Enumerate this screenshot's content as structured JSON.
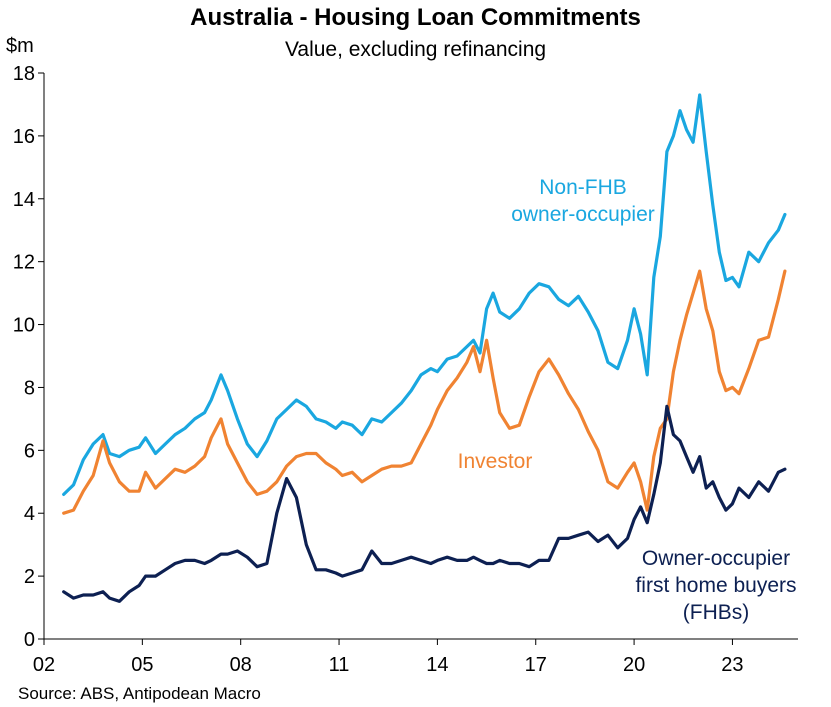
{
  "chart_data": {
    "type": "line",
    "title": "Australia - Housing Loan Commitments",
    "subtitle": "Value, excluding refinancing",
    "ylabel": "$m",
    "xlabel": "",
    "xlim": [
      2002.0,
      2025.0
    ],
    "ylim": [
      0,
      18
    ],
    "y_ticks": [
      "0",
      "2",
      "4",
      "6",
      "8",
      "10",
      "12",
      "14",
      "16",
      "18"
    ],
    "x_ticks": [
      {
        "x": 2002,
        "label": "02"
      },
      {
        "x": 2005,
        "label": "05"
      },
      {
        "x": 2008,
        "label": "08"
      },
      {
        "x": 2011,
        "label": "11"
      },
      {
        "x": 2014,
        "label": "14"
      },
      {
        "x": 2017,
        "label": "17"
      },
      {
        "x": 2020,
        "label": "20"
      },
      {
        "x": 2023,
        "label": "23"
      }
    ],
    "grid": false,
    "source": "Source: ABS, Antipodean Macro",
    "series": [
      {
        "key": "nonfhb",
        "color": "#1aa7e0",
        "annotation": [
          "Non-FHB",
          "owner-occupier"
        ],
        "x": [
          2002.6,
          2002.9,
          2003.2,
          2003.5,
          2003.8,
          2004.0,
          2004.3,
          2004.6,
          2004.9,
          2005.1,
          2005.4,
          2005.7,
          2006.0,
          2006.3,
          2006.6,
          2006.9,
          2007.1,
          2007.4,
          2007.6,
          2007.9,
          2008.2,
          2008.5,
          2008.8,
          2009.1,
          2009.4,
          2009.7,
          2010.0,
          2010.3,
          2010.6,
          2010.9,
          2011.1,
          2011.4,
          2011.7,
          2012.0,
          2012.3,
          2012.6,
          2012.9,
          2013.2,
          2013.5,
          2013.8,
          2014.0,
          2014.3,
          2014.6,
          2014.9,
          2015.1,
          2015.3,
          2015.5,
          2015.7,
          2015.9,
          2016.2,
          2016.5,
          2016.8,
          2017.1,
          2017.4,
          2017.7,
          2018.0,
          2018.3,
          2018.6,
          2018.9,
          2019.2,
          2019.5,
          2019.8,
          2020.0,
          2020.2,
          2020.4,
          2020.6,
          2020.8,
          2021.0,
          2021.2,
          2021.4,
          2021.6,
          2021.8,
          2022.0,
          2022.2,
          2022.4,
          2022.6,
          2022.8,
          2023.0,
          2023.2,
          2023.5,
          2023.8,
          2024.1,
          2024.4,
          2024.6
        ],
        "values": [
          4.6,
          4.9,
          5.7,
          6.2,
          6.5,
          5.9,
          5.8,
          6.0,
          6.1,
          6.4,
          5.9,
          6.2,
          6.5,
          6.7,
          7.0,
          7.2,
          7.6,
          8.4,
          7.9,
          7.0,
          6.2,
          5.8,
          6.3,
          7.0,
          7.3,
          7.6,
          7.4,
          7.0,
          6.9,
          6.7,
          6.9,
          6.8,
          6.5,
          7.0,
          6.9,
          7.2,
          7.5,
          7.9,
          8.4,
          8.6,
          8.5,
          8.9,
          9.0,
          9.3,
          9.5,
          9.1,
          10.5,
          11.0,
          10.4,
          10.2,
          10.5,
          11.0,
          11.3,
          11.2,
          10.8,
          10.6,
          10.9,
          10.4,
          9.8,
          8.8,
          8.6,
          9.5,
          10.5,
          9.7,
          8.4,
          11.5,
          12.8,
          15.5,
          16.0,
          16.8,
          16.2,
          15.8,
          17.3,
          15.5,
          13.8,
          12.3,
          11.4,
          11.5,
          11.2,
          12.3,
          12.0,
          12.6,
          13.0,
          13.5
        ]
      },
      {
        "key": "investor",
        "color": "#f08332",
        "annotation": [
          "Investor"
        ],
        "x": [
          2002.6,
          2002.9,
          2003.2,
          2003.5,
          2003.8,
          2004.0,
          2004.3,
          2004.6,
          2004.9,
          2005.1,
          2005.4,
          2005.7,
          2006.0,
          2006.3,
          2006.6,
          2006.9,
          2007.1,
          2007.4,
          2007.6,
          2007.9,
          2008.2,
          2008.5,
          2008.8,
          2009.1,
          2009.4,
          2009.7,
          2010.0,
          2010.3,
          2010.6,
          2010.9,
          2011.1,
          2011.4,
          2011.7,
          2012.0,
          2012.3,
          2012.6,
          2012.9,
          2013.2,
          2013.5,
          2013.8,
          2014.0,
          2014.3,
          2014.6,
          2014.9,
          2015.1,
          2015.3,
          2015.5,
          2015.7,
          2015.9,
          2016.2,
          2016.5,
          2016.8,
          2017.1,
          2017.4,
          2017.7,
          2018.0,
          2018.3,
          2018.6,
          2018.9,
          2019.2,
          2019.5,
          2019.8,
          2020.0,
          2020.2,
          2020.4,
          2020.6,
          2020.8,
          2021.0,
          2021.2,
          2021.4,
          2021.6,
          2021.8,
          2022.0,
          2022.2,
          2022.4,
          2022.6,
          2022.8,
          2023.0,
          2023.2,
          2023.5,
          2023.8,
          2024.1,
          2024.4,
          2024.6
        ],
        "values": [
          4.0,
          4.1,
          4.7,
          5.2,
          6.3,
          5.6,
          5.0,
          4.7,
          4.7,
          5.3,
          4.8,
          5.1,
          5.4,
          5.3,
          5.5,
          5.8,
          6.4,
          7.0,
          6.2,
          5.6,
          5.0,
          4.6,
          4.7,
          5.0,
          5.5,
          5.8,
          5.9,
          5.9,
          5.6,
          5.4,
          5.2,
          5.3,
          5.0,
          5.2,
          5.4,
          5.5,
          5.5,
          5.6,
          6.2,
          6.8,
          7.3,
          7.9,
          8.3,
          8.8,
          9.3,
          8.5,
          9.5,
          8.3,
          7.2,
          6.7,
          6.8,
          7.7,
          8.5,
          8.9,
          8.4,
          7.8,
          7.3,
          6.6,
          6.0,
          5.0,
          4.8,
          5.3,
          5.6,
          5.0,
          4.1,
          5.8,
          6.7,
          7.0,
          8.5,
          9.5,
          10.3,
          11.0,
          11.7,
          10.5,
          9.8,
          8.5,
          7.9,
          8.0,
          7.8,
          8.6,
          9.5,
          9.6,
          10.8,
          11.7
        ]
      },
      {
        "key": "fhb",
        "color": "#0d2052",
        "annotation": [
          "Owner-occupier",
          "first home buyers",
          "(FHBs)"
        ],
        "x": [
          2002.6,
          2002.9,
          2003.2,
          2003.5,
          2003.8,
          2004.0,
          2004.3,
          2004.6,
          2004.9,
          2005.1,
          2005.4,
          2005.7,
          2006.0,
          2006.3,
          2006.6,
          2006.9,
          2007.1,
          2007.4,
          2007.6,
          2007.9,
          2008.2,
          2008.5,
          2008.8,
          2009.1,
          2009.4,
          2009.7,
          2010.0,
          2010.3,
          2010.6,
          2010.9,
          2011.1,
          2011.4,
          2011.7,
          2012.0,
          2012.3,
          2012.6,
          2012.9,
          2013.2,
          2013.5,
          2013.8,
          2014.0,
          2014.3,
          2014.6,
          2014.9,
          2015.1,
          2015.3,
          2015.5,
          2015.7,
          2015.9,
          2016.2,
          2016.5,
          2016.8,
          2017.1,
          2017.4,
          2017.7,
          2018.0,
          2018.3,
          2018.6,
          2018.9,
          2019.2,
          2019.5,
          2019.8,
          2020.0,
          2020.2,
          2020.4,
          2020.6,
          2020.8,
          2021.0,
          2021.2,
          2021.4,
          2021.6,
          2021.8,
          2022.0,
          2022.2,
          2022.4,
          2022.6,
          2022.8,
          2023.0,
          2023.2,
          2023.5,
          2023.8,
          2024.1,
          2024.4,
          2024.6
        ],
        "values": [
          1.5,
          1.3,
          1.4,
          1.4,
          1.5,
          1.3,
          1.2,
          1.5,
          1.7,
          2.0,
          2.0,
          2.2,
          2.4,
          2.5,
          2.5,
          2.4,
          2.5,
          2.7,
          2.7,
          2.8,
          2.6,
          2.3,
          2.4,
          4.0,
          5.1,
          4.5,
          3.0,
          2.2,
          2.2,
          2.1,
          2.0,
          2.1,
          2.2,
          2.8,
          2.4,
          2.4,
          2.5,
          2.6,
          2.5,
          2.4,
          2.5,
          2.6,
          2.5,
          2.5,
          2.6,
          2.5,
          2.4,
          2.4,
          2.5,
          2.4,
          2.4,
          2.3,
          2.5,
          2.5,
          3.2,
          3.2,
          3.3,
          3.4,
          3.1,
          3.3,
          2.9,
          3.2,
          3.8,
          4.2,
          3.7,
          4.6,
          5.6,
          7.4,
          6.5,
          6.3,
          5.8,
          5.3,
          5.8,
          4.8,
          5.0,
          4.5,
          4.1,
          4.3,
          4.8,
          4.5,
          5.0,
          4.7,
          5.3,
          5.4
        ]
      }
    ]
  }
}
